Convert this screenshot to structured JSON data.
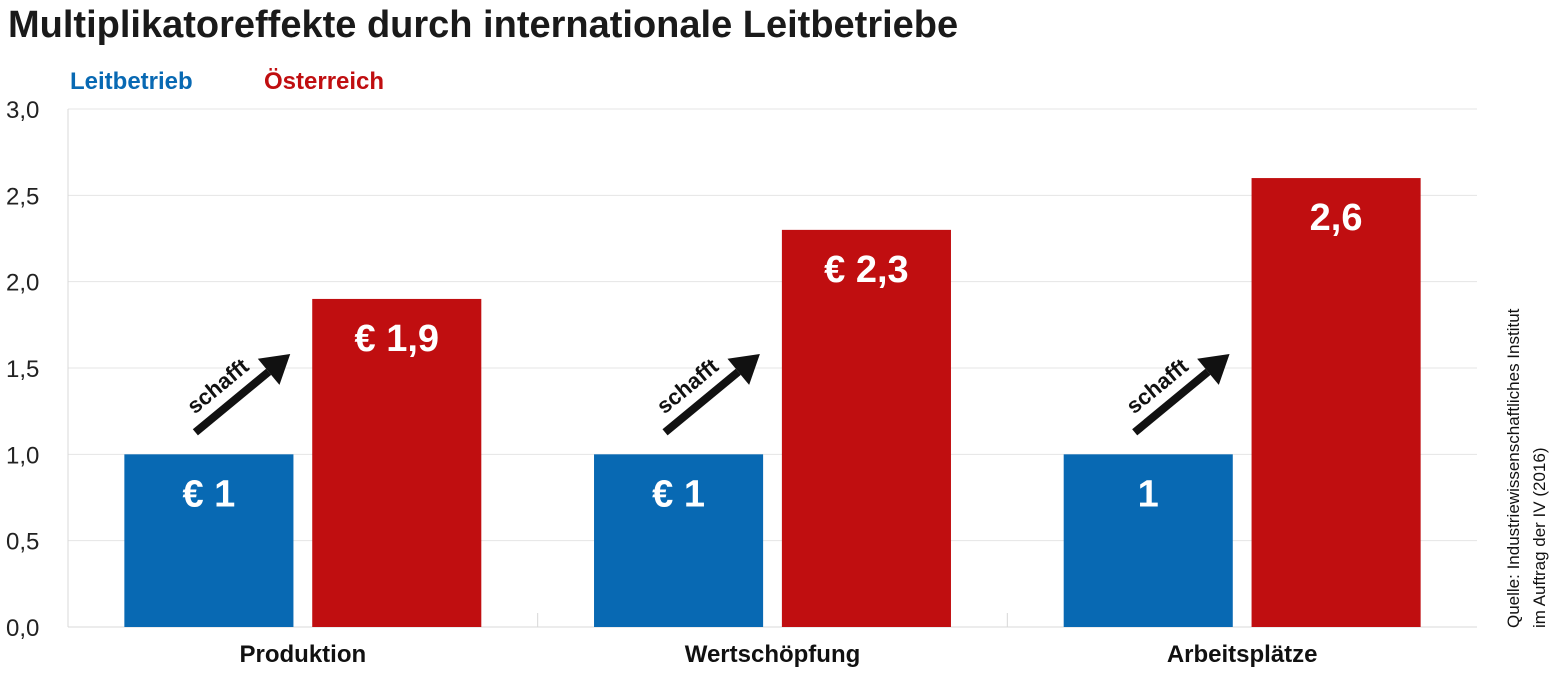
{
  "chart_data": {
    "type": "bar",
    "title": "Multiplikatoreffekte durch internationale Leitbetriebe",
    "categories": [
      "Produktion",
      "Wertschöpfung",
      "Arbeitsplätze"
    ],
    "series": [
      {
        "name": "Leitbetrieb",
        "color": "#0869b3",
        "values": [
          1,
          1,
          1
        ],
        "labels": [
          "€ 1",
          "€ 1",
          "1"
        ]
      },
      {
        "name": "Österreich",
        "color": "#c00e10",
        "values": [
          1.9,
          2.3,
          2.6
        ],
        "labels": [
          "€ 1,9",
          "€ 2,3",
          "2,6"
        ]
      }
    ],
    "ylim": [
      0,
      3
    ],
    "yticks": [
      {
        "value": 0,
        "label": "0,0"
      },
      {
        "value": 0.5,
        "label": "0,5"
      },
      {
        "value": 1,
        "label": "1,0"
      },
      {
        "value": 1.5,
        "label": "1,5"
      },
      {
        "value": 2,
        "label": "2,0"
      },
      {
        "value": 2.5,
        "label": "2,5"
      },
      {
        "value": 3,
        "label": "3,0"
      }
    ],
    "grid": true,
    "legend_position": "top-left",
    "annotation": "schafft",
    "source_lines": [
      "Quelle: Industriewissenschaftliches Institut",
      "im Auftrag der IV (2016)"
    ]
  }
}
